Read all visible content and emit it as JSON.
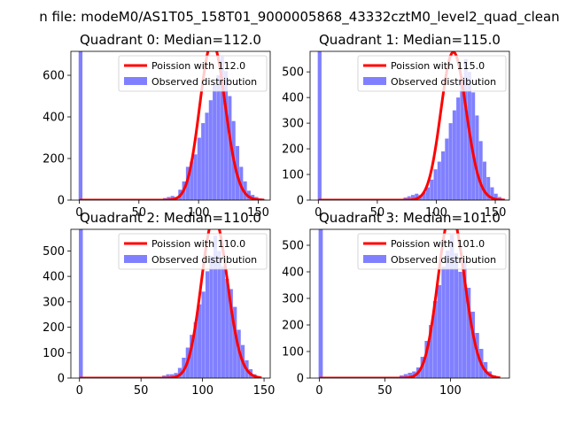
{
  "figure": {
    "suptitle": "n file: modeM0/AS1T05_158T01_9000005868_43332cztM0_level2_quad_clean"
  },
  "chart_data": [
    {
      "type": "bar",
      "title": "Quadrant 0: Median=112.0",
      "xlim": [
        -7,
        160
      ],
      "ylim": [
        0,
        715
      ],
      "xticks": [
        0,
        50,
        100,
        150
      ],
      "yticks": [
        0,
        200,
        400,
        600
      ],
      "legend_position": "top-right",
      "median": 112.0,
      "zero_bin": {
        "x0": -0.5,
        "x1": 2.7,
        "value": 715
      },
      "hist": {
        "name": "Observed distribution",
        "color": "#8080ff",
        "bin_start": 67,
        "bin_width": 3.2,
        "values": [
          5,
          10,
          15,
          20,
          15,
          50,
          90,
          160,
          185,
          220,
          300,
          370,
          420,
          480,
          560,
          600,
          690,
          620,
          500,
          380,
          260,
          160,
          90,
          45,
          25,
          15,
          8,
          3
        ]
      },
      "fit": {
        "name": "Poission with 112.0",
        "color": "#ff0000",
        "lambda": 112.0,
        "x_range": [
          0,
          155
        ]
      }
    },
    {
      "type": "bar",
      "title": "Quadrant 1: Median=115.0",
      "xlim": [
        -7,
        162
      ],
      "ylim": [
        0,
        580
      ],
      "xticks": [
        0,
        50,
        100,
        150
      ],
      "yticks": [
        0,
        100,
        200,
        300,
        400,
        500
      ],
      "legend_position": "top-right",
      "median": 115.0,
      "zero_bin": {
        "x0": -0.5,
        "x1": 2.7,
        "value": 580
      },
      "hist": {
        "name": "Observed distribution",
        "color": "#8080ff",
        "bin_start": 69,
        "bin_width": 3.2,
        "values": [
          5,
          10,
          15,
          20,
          25,
          20,
          30,
          50,
          80,
          120,
          150,
          190,
          240,
          300,
          350,
          400,
          480,
          550,
          500,
          420,
          330,
          230,
          150,
          90,
          50,
          25,
          12,
          5,
          2
        ]
      },
      "fit": {
        "name": "Poission with 115.0",
        "color": "#ff0000",
        "lambda": 115.0,
        "x_range": [
          0,
          158
        ]
      }
    },
    {
      "type": "bar",
      "title": "Quadrant 2: Median=110.0",
      "xlim": [
        -7,
        155
      ],
      "ylim": [
        0,
        585
      ],
      "xticks": [
        0,
        50,
        100,
        150
      ],
      "yticks": [
        0,
        100,
        200,
        300,
        400,
        500
      ],
      "legend_position": "top-right",
      "median": 110.0,
      "zero_bin": {
        "x0": -0.5,
        "x1": 2.7,
        "value": 585
      },
      "hist": {
        "name": "Observed distribution",
        "color": "#8080ff",
        "bin_start": 64,
        "bin_width": 3.2,
        "values": [
          5,
          10,
          15,
          15,
          20,
          40,
          80,
          120,
          170,
          220,
          290,
          340,
          420,
          480,
          560,
          500,
          440,
          390,
          350,
          280,
          190,
          130,
          70,
          35,
          15,
          5
        ]
      },
      "fit": {
        "name": "Poission with 110.0",
        "color": "#ff0000",
        "lambda": 110.0,
        "x_range": [
          0,
          148
        ]
      }
    },
    {
      "type": "bar",
      "title": "Quadrant 3: Median=101.0",
      "xlim": [
        -7,
        145
      ],
      "ylim": [
        0,
        560
      ],
      "xticks": [
        0,
        50,
        100
      ],
      "yticks": [
        0,
        100,
        200,
        300,
        400,
        500
      ],
      "legend_position": "top-right",
      "median": 101.0,
      "zero_bin": {
        "x0": -0.5,
        "x1": 2.7,
        "value": 560
      },
      "hist": {
        "name": "Observed distribution",
        "color": "#8080ff",
        "bin_start": 58,
        "bin_width": 3.2,
        "values": [
          5,
          10,
          15,
          20,
          25,
          40,
          80,
          140,
          200,
          290,
          350,
          420,
          480,
          540,
          470,
          400,
          440,
          340,
          250,
          170,
          110,
          60,
          25,
          10
        ]
      },
      "fit": {
        "name": "Poission with 101.0",
        "color": "#ff0000",
        "lambda": 101.0,
        "x_range": [
          0,
          138
        ]
      }
    }
  ]
}
